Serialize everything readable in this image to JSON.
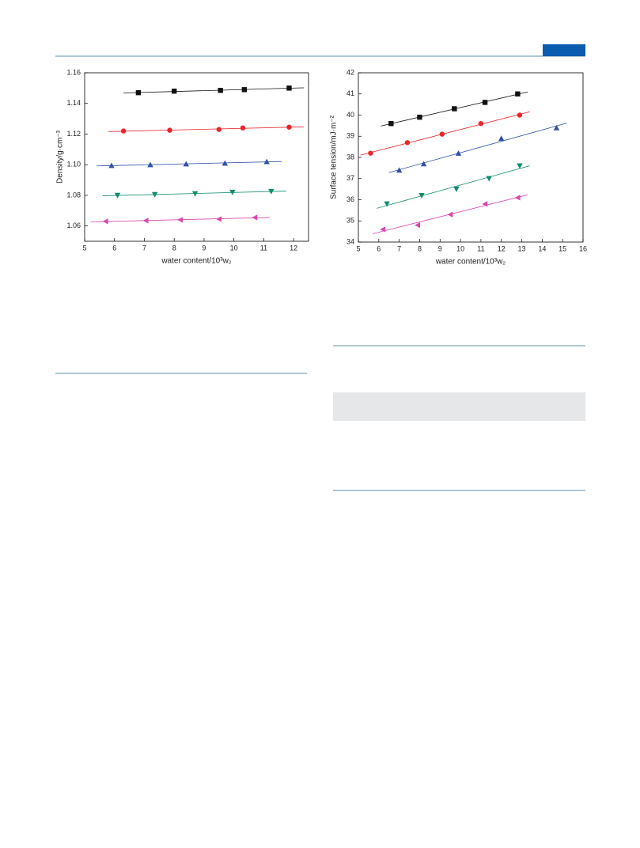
{
  "chart_data": [
    {
      "type": "scatter",
      "xlabel": "water content/10³w₂",
      "ylabel": "Density/g·cm⁻³",
      "xlim": [
        5,
        12.5
      ],
      "ylim": [
        1.05,
        1.16
      ],
      "xticks": [
        5,
        6,
        7,
        8,
        9,
        10,
        11,
        12
      ],
      "yticks": [
        1.06,
        1.08,
        {
          "value": 1.1,
          "label": "1.10"
        },
        1.12,
        1.14,
        1.16
      ],
      "series": [
        {
          "color": "#111111",
          "marker": "square",
          "x": [
            6.8,
            8.0,
            9.55,
            10.35,
            11.85
          ],
          "values": [
            1.147,
            1.148,
            1.1485,
            1.149,
            1.15
          ]
        },
        {
          "color": "#e8262a",
          "marker": "circle",
          "x": [
            6.3,
            7.85,
            9.5,
            10.3,
            11.85
          ],
          "values": [
            1.122,
            1.1225,
            1.123,
            1.124,
            1.1245
          ]
        },
        {
          "color": "#3050a8",
          "marker": "triangle-up",
          "x": [
            5.9,
            7.2,
            8.4,
            9.7,
            11.1
          ],
          "values": [
            1.0995,
            1.1,
            1.1005,
            1.101,
            1.102
          ]
        },
        {
          "color": "#0e8c6e",
          "marker": "triangle-down",
          "x": [
            6.1,
            7.35,
            8.7,
            9.95,
            11.25
          ],
          "values": [
            1.08,
            1.0805,
            1.081,
            1.082,
            1.0825
          ]
        },
        {
          "color": "#d848b0",
          "marker": "triangle-left",
          "x": [
            5.7,
            7.05,
            8.2,
            9.5,
            10.7
          ],
          "values": [
            1.063,
            1.0635,
            1.064,
            1.0645,
            1.0655
          ]
        }
      ]
    },
    {
      "type": "scatter",
      "xlabel": "water content/10³w₂",
      "ylabel": "Surface tension/mJ·m⁻²",
      "xlim": [
        5,
        16
      ],
      "ylim": [
        34,
        42
      ],
      "xticks": [
        5,
        6,
        7,
        8,
        9,
        10,
        11,
        12,
        13,
        14,
        15,
        16
      ],
      "yticks": [
        34,
        35,
        36,
        37,
        38,
        39,
        40,
        41,
        42
      ],
      "series": [
        {
          "color": "#111111",
          "marker": "square",
          "x": [
            6.6,
            8.0,
            9.7,
            11.2,
            12.8
          ],
          "values": [
            39.6,
            39.9,
            40.3,
            40.6,
            41.0
          ]
        },
        {
          "color": "#e8262a",
          "marker": "circle",
          "x": [
            5.6,
            7.4,
            9.1,
            11.0,
            12.9
          ],
          "values": [
            38.2,
            38.7,
            39.1,
            39.6,
            40.0
          ]
        },
        {
          "color": "#3050a8",
          "marker": "triangle-up",
          "x": [
            7.0,
            8.2,
            9.9,
            12.0,
            14.7
          ],
          "values": [
            37.4,
            37.7,
            38.2,
            38.9,
            39.4
          ]
        },
        {
          "color": "#0e8c6e",
          "marker": "triangle-down",
          "x": [
            6.4,
            8.1,
            9.8,
            11.4,
            12.9
          ],
          "values": [
            35.8,
            36.2,
            36.5,
            37.0,
            37.6
          ]
        },
        {
          "color": "#d848b0",
          "marker": "triangle-left",
          "x": [
            6.2,
            7.9,
            9.5,
            11.2,
            12.8
          ],
          "values": [
            34.6,
            34.8,
            35.3,
            35.8,
            36.1
          ]
        }
      ]
    }
  ]
}
